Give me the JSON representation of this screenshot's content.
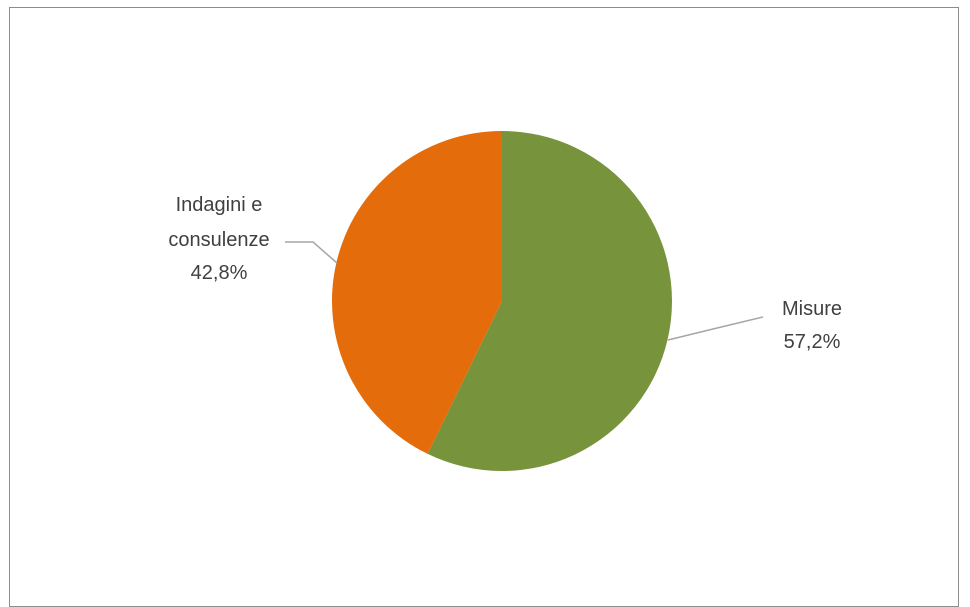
{
  "chart_data": {
    "type": "pie",
    "title": "",
    "slices": [
      {
        "label": "Misure",
        "value": 57.2,
        "display": "57,2%",
        "color": "#77933c"
      },
      {
        "label_lines": [
          "Indagini e",
          "consulenze"
        ],
        "value": 42.8,
        "display": "42,8%",
        "color": "#e46c0a"
      }
    ],
    "start_angle_deg": 0,
    "direction": "clockwise",
    "legend": "none",
    "leader_line_color": "#a6a6a6"
  }
}
